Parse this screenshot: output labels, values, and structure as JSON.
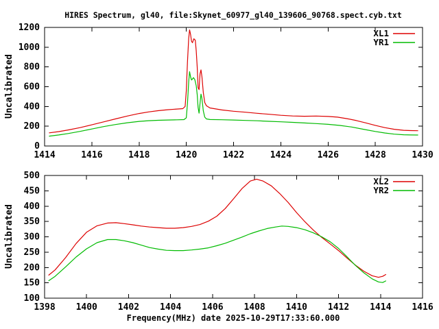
{
  "title": "HIRES Spectrum, gl40, file:Skynet_60977_gl40_139606_90768.spect.cyb.txt",
  "colors": {
    "background": "#ffffff",
    "axis": "#000000",
    "text": "#000000",
    "xl_series_red": "#dd0000",
    "yr_series_green": "#00bb00"
  },
  "chart_data": [
    {
      "type": "line",
      "title": "",
      "xlabel": "",
      "ylabel": "Uncalibrated",
      "xlim": [
        1414,
        1430
      ],
      "ylim": [
        0,
        1200
      ],
      "x_ticks": [
        1414,
        1416,
        1418,
        1420,
        1422,
        1424,
        1426,
        1428,
        1430
      ],
      "y_ticks": [
        0,
        200,
        400,
        600,
        800,
        1000,
        1200
      ],
      "grid": false,
      "legend_position": "top-right-inside",
      "series": [
        {
          "name": "XL1",
          "color": "#dd0000",
          "points": [
            [
              1414.2,
              133
            ],
            [
              1414.6,
              146
            ],
            [
              1415,
              162
            ],
            [
              1415.5,
              186
            ],
            [
              1416,
              214
            ],
            [
              1416.5,
              244
            ],
            [
              1417,
              274
            ],
            [
              1417.5,
              303
            ],
            [
              1418,
              329
            ],
            [
              1418.4,
              345
            ],
            [
              1418.8,
              357
            ],
            [
              1419.2,
              367
            ],
            [
              1419.6,
              374
            ],
            [
              1419.85,
              378
            ],
            [
              1419.95,
              400
            ],
            [
              1420.0,
              560
            ],
            [
              1420.05,
              850
            ],
            [
              1420.1,
              1090
            ],
            [
              1420.14,
              1175
            ],
            [
              1420.18,
              1130
            ],
            [
              1420.22,
              1060
            ],
            [
              1420.26,
              1045
            ],
            [
              1420.32,
              1085
            ],
            [
              1420.38,
              1070
            ],
            [
              1420.42,
              960
            ],
            [
              1420.46,
              800
            ],
            [
              1420.5,
              590
            ],
            [
              1420.54,
              570
            ],
            [
              1420.58,
              730
            ],
            [
              1420.62,
              770
            ],
            [
              1420.66,
              700
            ],
            [
              1420.72,
              540
            ],
            [
              1420.78,
              440
            ],
            [
              1420.85,
              408
            ],
            [
              1421,
              385
            ],
            [
              1421.5,
              365
            ],
            [
              1422,
              352
            ],
            [
              1422.5,
              342
            ],
            [
              1423,
              331
            ],
            [
              1423.5,
              321
            ],
            [
              1424,
              311
            ],
            [
              1424.5,
              304
            ],
            [
              1425,
              301
            ],
            [
              1425.5,
              303
            ],
            [
              1426,
              299
            ],
            [
              1426.4,
              292
            ],
            [
              1426.8,
              277
            ],
            [
              1427.2,
              257
            ],
            [
              1427.6,
              234
            ],
            [
              1428,
              209
            ],
            [
              1428.4,
              186
            ],
            [
              1428.8,
              169
            ],
            [
              1429.2,
              159
            ],
            [
              1429.5,
              156
            ],
            [
              1429.8,
              155
            ]
          ]
        },
        {
          "name": "YR1",
          "color": "#00bb00",
          "points": [
            [
              1414.2,
              100
            ],
            [
              1414.6,
              112
            ],
            [
              1415,
              126
            ],
            [
              1415.5,
              148
            ],
            [
              1416,
              172
            ],
            [
              1416.5,
              196
            ],
            [
              1417,
              217
            ],
            [
              1417.5,
              235
            ],
            [
              1418,
              249
            ],
            [
              1418.4,
              256
            ],
            [
              1418.8,
              260
            ],
            [
              1419.2,
              263
            ],
            [
              1419.6,
              265
            ],
            [
              1419.9,
              267
            ],
            [
              1420.0,
              285
            ],
            [
              1420.05,
              430
            ],
            [
              1420.1,
              650
            ],
            [
              1420.14,
              752
            ],
            [
              1420.18,
              700
            ],
            [
              1420.22,
              668
            ],
            [
              1420.26,
              678
            ],
            [
              1420.3,
              692
            ],
            [
              1420.36,
              672
            ],
            [
              1420.42,
              610
            ],
            [
              1420.46,
              520
            ],
            [
              1420.5,
              390
            ],
            [
              1420.54,
              332
            ],
            [
              1420.58,
              430
            ],
            [
              1420.62,
              525
            ],
            [
              1420.66,
              480
            ],
            [
              1420.72,
              355
            ],
            [
              1420.78,
              292
            ],
            [
              1420.85,
              274
            ],
            [
              1421,
              268
            ],
            [
              1421.5,
              266
            ],
            [
              1422,
              263
            ],
            [
              1422.5,
              259
            ],
            [
              1423,
              255
            ],
            [
              1423.5,
              250
            ],
            [
              1424,
              245
            ],
            [
              1424.5,
              239
            ],
            [
              1425,
              233
            ],
            [
              1425.5,
              227
            ],
            [
              1426,
              219
            ],
            [
              1426.5,
              208
            ],
            [
              1427,
              192
            ],
            [
              1427.5,
              169
            ],
            [
              1428,
              147
            ],
            [
              1428.4,
              132
            ],
            [
              1428.8,
              120
            ],
            [
              1429.2,
              114
            ],
            [
              1429.5,
              112
            ],
            [
              1429.8,
              111
            ]
          ]
        }
      ]
    },
    {
      "type": "line",
      "title": "",
      "xlabel": "Frequency(MHz) date 2025-10-29T17:33:60.000",
      "ylabel": "Uncalibrated",
      "xlim": [
        1398,
        1416
      ],
      "ylim": [
        100,
        500
      ],
      "x_ticks": [
        1398,
        1400,
        1402,
        1404,
        1406,
        1408,
        1410,
        1412,
        1414,
        1416
      ],
      "y_ticks": [
        100,
        150,
        200,
        250,
        300,
        350,
        400,
        450,
        500
      ],
      "grid": false,
      "legend_position": "top-right-inside",
      "series": [
        {
          "name": "XL2",
          "color": "#dd0000",
          "points": [
            [
              1398.2,
              175
            ],
            [
              1398.5,
              192
            ],
            [
              1399,
              232
            ],
            [
              1399.5,
              278
            ],
            [
              1400,
              315
            ],
            [
              1400.5,
              336
            ],
            [
              1401,
              345
            ],
            [
              1401.4,
              346
            ],
            [
              1401.8,
              343
            ],
            [
              1402.2,
              339
            ],
            [
              1402.6,
              335
            ],
            [
              1403,
              332
            ],
            [
              1403.4,
              330
            ],
            [
              1403.8,
              328
            ],
            [
              1404.2,
              328
            ],
            [
              1404.6,
              330
            ],
            [
              1405,
              334
            ],
            [
              1405.4,
              340
            ],
            [
              1405.8,
              351
            ],
            [
              1406.2,
              367
            ],
            [
              1406.6,
              392
            ],
            [
              1407,
              424
            ],
            [
              1407.4,
              457
            ],
            [
              1407.8,
              482
            ],
            [
              1408.1,
              488
            ],
            [
              1408.4,
              482
            ],
            [
              1408.8,
              466
            ],
            [
              1409.2,
              441
            ],
            [
              1409.6,
              412
            ],
            [
              1410,
              379
            ],
            [
              1410.4,
              349
            ],
            [
              1410.8,
              322
            ],
            [
              1411.2,
              298
            ],
            [
              1411.6,
              277
            ],
            [
              1412,
              255
            ],
            [
              1412.4,
              231
            ],
            [
              1412.8,
              208
            ],
            [
              1413.2,
              188
            ],
            [
              1413.6,
              173
            ],
            [
              1413.9,
              168
            ],
            [
              1414.1,
              171
            ],
            [
              1414.25,
              177
            ]
          ]
        },
        {
          "name": "YR2",
          "color": "#00bb00",
          "points": [
            [
              1398.2,
              157
            ],
            [
              1398.5,
              171
            ],
            [
              1399,
              202
            ],
            [
              1399.5,
              234
            ],
            [
              1400,
              261
            ],
            [
              1400.5,
              281
            ],
            [
              1401,
              291
            ],
            [
              1401.4,
              291
            ],
            [
              1401.8,
              287
            ],
            [
              1402.2,
              281
            ],
            [
              1402.6,
              273
            ],
            [
              1403,
              265
            ],
            [
              1403.4,
              260
            ],
            [
              1403.8,
              256
            ],
            [
              1404.2,
              255
            ],
            [
              1404.6,
              255
            ],
            [
              1405,
              257
            ],
            [
              1405.4,
              260
            ],
            [
              1405.8,
              264
            ],
            [
              1406.2,
              271
            ],
            [
              1406.6,
              279
            ],
            [
              1407,
              289
            ],
            [
              1407.4,
              299
            ],
            [
              1407.8,
              310
            ],
            [
              1408.2,
              319
            ],
            [
              1408.6,
              327
            ],
            [
              1409,
              332
            ],
            [
              1409.3,
              335
            ],
            [
              1409.6,
              334
            ],
            [
              1410,
              330
            ],
            [
              1410.4,
              323
            ],
            [
              1410.8,
              313
            ],
            [
              1411.2,
              300
            ],
            [
              1411.6,
              284
            ],
            [
              1412,
              262
            ],
            [
              1412.4,
              235
            ],
            [
              1412.8,
              207
            ],
            [
              1413.2,
              183
            ],
            [
              1413.6,
              163
            ],
            [
              1413.9,
              153
            ],
            [
              1414.1,
              151
            ],
            [
              1414.25,
              156
            ]
          ]
        }
      ]
    }
  ]
}
